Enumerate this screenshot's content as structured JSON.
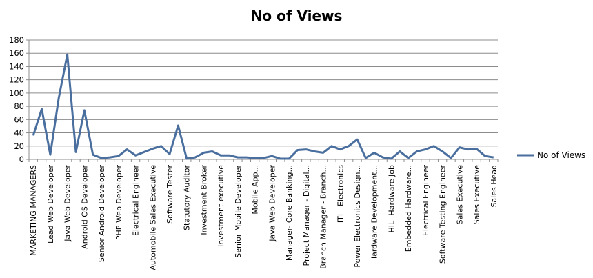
{
  "chart_data": {
    "type": "line",
    "title": "No of Views",
    "xlabel": "",
    "ylabel": "",
    "ylim": [
      0,
      180
    ],
    "yticks": [
      0,
      20,
      40,
      60,
      80,
      100,
      120,
      140,
      160,
      180
    ],
    "grid": true,
    "legend": "right",
    "color": "#4a6f9f",
    "x_labels_every_other": [
      "MARKETING MANAGERS",
      "Lead Web Developer",
      "Java Web Developer",
      "Android OS Developer",
      "Senior Android Developer",
      "PHP Web Developer",
      "Electrical Engineer",
      "Automobile Sales Executive",
      "Software Tester",
      "Statutory Auditor",
      "Investment Broker",
      "Investment executive",
      "Senior Mobile Developer",
      "Mobile App...",
      "Java Web Developer",
      "Manager- Core Banking...",
      "Project Manager - Digital...",
      "Branch Manager - Branch...",
      "ITI - Electronics",
      "Power Electronics Design...",
      "Hardware Development...",
      "HIL- Hardware Job",
      "Embedded Hardware...",
      "Electrical Engineer",
      "Software Testing Engineer",
      "Sales Executive",
      "Sales Executive",
      "Sales Head"
    ],
    "series": [
      {
        "name": "No of Views",
        "values": [
          36,
          76,
          7,
          93,
          158,
          11,
          74,
          7,
          2,
          3,
          5,
          15,
          6,
          11,
          16,
          20,
          8,
          51,
          1,
          3,
          10,
          12,
          6,
          6,
          3,
          3,
          2,
          2,
          5,
          1,
          1,
          14,
          15,
          12,
          10,
          20,
          15,
          20,
          30,
          2,
          10,
          3,
          1,
          12,
          2,
          12,
          15,
          20,
          12,
          2,
          18,
          15,
          16,
          5,
          3
        ]
      }
    ]
  }
}
